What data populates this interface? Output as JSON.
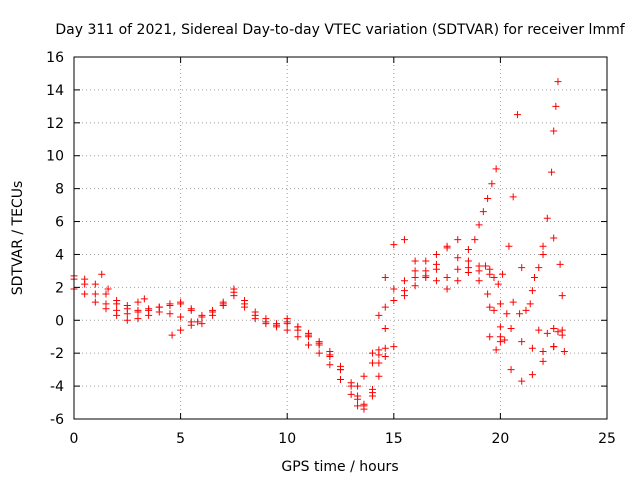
{
  "chart_data": {
    "type": "scatter",
    "title": "Day 311 of 2021, Sidereal Day-to-day VTEC variation (SDTVAR) for receiver lmmf",
    "xlabel": "GPS time / hours",
    "ylabel": "SDTVAR / TECUs",
    "xlim": [
      0,
      25
    ],
    "ylim": [
      -6,
      16
    ],
    "xticks": [
      0,
      5,
      10,
      15,
      20,
      25
    ],
    "yticks": [
      -6,
      -4,
      -2,
      0,
      2,
      4,
      6,
      8,
      10,
      12,
      14,
      16
    ],
    "xtick_labels": [
      "0",
      "5",
      "10",
      "15",
      "20",
      "25"
    ],
    "ytick_labels": [
      "-6",
      "-4",
      "-2",
      "0",
      "2",
      "4",
      "6",
      "8",
      "10",
      "12",
      "14",
      "16"
    ],
    "grid": true,
    "marker": "+",
    "marker_color": "#ff0000",
    "series": [
      {
        "name": "s1",
        "x": [
          0.0,
          0.5,
          1.0,
          1.5,
          2.0,
          2.5,
          3.0,
          3.5,
          4.0,
          4.5,
          5.0,
          5.5,
          6.0,
          6.5,
          7.0,
          7.5,
          8.0,
          8.5,
          9.0,
          9.5,
          10.0,
          10.5,
          11.0,
          11.5,
          12.0,
          12.5,
          13.0,
          13.3,
          13.6,
          14.0,
          14.3,
          14.6,
          15.0,
          15.5,
          16.0,
          16.5,
          17.0,
          17.5,
          18.0,
          18.5,
          19.0,
          19.5,
          20.0,
          20.5,
          21.0,
          21.5,
          22.0,
          22.5,
          23.0
        ],
        "y": [
          2.7,
          2.5,
          2.2,
          1.6,
          1.0,
          0.7,
          0.6,
          0.7,
          0.8,
          1.0,
          1.1,
          0.7,
          0.3,
          0.6,
          1.1,
          1.9,
          1.2,
          0.5,
          0.1,
          -0.2,
          -0.1,
          -0.4,
          -0.8,
          -1.3,
          -1.9,
          -2.8,
          -3.8,
          -4.6,
          -5.1,
          -4.2,
          -1.8,
          0.8,
          1.9,
          2.4,
          3.0,
          3.6,
          3.1,
          2.6,
          3.1,
          3.6,
          3.3,
          2.8,
          1.0,
          -0.5,
          -1.3,
          -1.7,
          -1.9,
          -1.6,
          -1.9
        ]
      },
      {
        "name": "s2",
        "x": [
          0.0,
          0.5,
          1.0,
          1.5,
          2.0,
          2.5,
          3.0,
          3.5,
          4.0,
          4.5,
          5.0,
          5.5,
          6.0,
          6.5,
          7.0,
          7.5,
          8.0,
          8.5,
          9.0,
          9.5,
          10.0,
          10.5,
          11.0,
          11.5,
          12.0,
          12.5,
          13.0,
          13.3,
          13.6,
          14.0,
          14.3,
          14.6,
          15.0,
          15.5,
          16.0,
          16.5,
          17.0,
          17.5,
          18.0,
          18.5,
          19.0,
          19.5,
          20.0,
          20.5,
          21.0,
          21.5,
          22.0,
          22.5,
          22.9
        ],
        "y": [
          1.9,
          1.6,
          1.1,
          0.7,
          0.3,
          0.0,
          0.1,
          0.3,
          0.5,
          0.4,
          0.2,
          -0.1,
          -0.2,
          0.3,
          0.9,
          1.5,
          0.8,
          0.1,
          -0.2,
          -0.4,
          -0.6,
          -1.0,
          -1.5,
          -2.0,
          -2.7,
          -3.6,
          -4.5,
          -5.2,
          -5.4,
          -4.6,
          -3.4,
          -2.2,
          -1.6,
          1.5,
          2.6,
          3.0,
          2.4,
          1.9,
          2.4,
          2.9,
          2.4,
          0.8,
          -1.3,
          -3.0,
          -3.7,
          -3.3,
          -2.5,
          -1.6,
          -0.9
        ]
      },
      {
        "name": "s3",
        "x": [
          0.0,
          0.5,
          1.0,
          1.5,
          2.0,
          2.5,
          3.0,
          3.5,
          4.0,
          4.5,
          5.0,
          5.5,
          6.0,
          6.5,
          7.0,
          7.5,
          8.0,
          8.5,
          9.0,
          9.5,
          10.0,
          10.5,
          11.0,
          11.5,
          12.0,
          12.5,
          13.0,
          13.3,
          13.6,
          14.0,
          14.3,
          14.6,
          15.0,
          15.5,
          16.0,
          16.5,
          17.0,
          17.5,
          18.0,
          18.5,
          19.0,
          19.3,
          19.5,
          19.7,
          19.9,
          20.1,
          20.4,
          20.6,
          20.8
        ],
        "y": [
          2.5,
          2.2,
          1.6,
          1.0,
          0.6,
          0.4,
          0.5,
          0.6,
          0.8,
          0.9,
          1.0,
          0.6,
          0.2,
          0.5,
          1.0,
          1.7,
          1.0,
          0.3,
          -0.1,
          -0.3,
          -0.2,
          -0.6,
          -1.0,
          -1.5,
          -2.1,
          -3.0,
          -4.0,
          -4.8,
          -5.2,
          -4.4,
          -2.6,
          -0.5,
          1.2,
          1.8,
          2.1,
          2.7,
          4.0,
          4.5,
          3.8,
          3.2,
          3.0,
          3.3,
          3.1,
          2.6,
          2.2,
          2.8,
          4.5,
          7.5,
          12.5
        ]
      },
      {
        "name": "s4",
        "x": [
          14.0,
          14.3,
          14.6,
          15.0,
          15.5,
          16.0,
          16.5,
          17.0,
          17.5,
          18.0,
          18.5,
          18.8,
          19.0,
          19.2,
          19.4,
          19.6,
          19.8
        ],
        "y": [
          -2.0,
          0.3,
          2.6,
          4.6,
          4.9,
          3.6,
          2.6,
          3.4,
          4.4,
          4.9,
          4.3,
          4.9,
          5.8,
          6.6,
          7.4,
          8.3,
          9.2
        ]
      },
      {
        "name": "s5",
        "x": [
          19.5,
          19.8,
          20.0,
          20.3,
          20.6,
          20.9,
          21.2,
          21.5,
          21.8,
          22.0,
          22.2,
          22.4,
          22.5,
          22.6,
          22.7
        ],
        "y": [
          -1.0,
          -1.8,
          -1.0,
          0.4,
          1.1,
          0.4,
          0.6,
          1.8,
          3.2,
          4.5,
          6.2,
          9.0,
          11.5,
          13.0,
          14.5
        ]
      },
      {
        "name": "s6",
        "x": [
          21.0,
          21.4,
          21.8,
          22.2,
          22.5,
          22.7,
          22.9
        ],
        "y": [
          3.2,
          1.0,
          -0.6,
          -0.8,
          -0.5,
          -0.7,
          -0.6
        ]
      },
      {
        "name": "s7",
        "x": [
          1.3,
          1.6,
          2.0,
          2.5,
          3.0,
          3.3
        ],
        "y": [
          2.8,
          1.9,
          1.2,
          0.9,
          1.1,
          1.3
        ]
      },
      {
        "name": "s8",
        "x": [
          4.6,
          5.0,
          5.5,
          5.8
        ],
        "y": [
          -0.9,
          -0.6,
          -0.3,
          -0.1
        ]
      },
      {
        "name": "s9",
        "x": [
          10.0,
          10.5,
          11.0,
          11.5,
          12.0,
          12.5
        ],
        "y": [
          0.1,
          -0.4,
          -0.9,
          -1.4,
          -2.2,
          -3.0
        ]
      },
      {
        "name": "s10",
        "x": [
          13.3,
          13.6,
          14.0,
          14.3,
          14.6
        ],
        "y": [
          -4.0,
          -3.4,
          -2.6,
          -2.1,
          -1.7
        ]
      },
      {
        "name": "s11",
        "x": [
          19.4,
          19.7,
          20.0,
          20.2
        ],
        "y": [
          1.6,
          0.6,
          -0.4,
          -1.2
        ]
      },
      {
        "name": "s12",
        "x": [
          21.6,
          22.0,
          22.5,
          22.8,
          22.9
        ],
        "y": [
          2.6,
          4.0,
          5.0,
          3.4,
          1.5
        ]
      }
    ]
  }
}
